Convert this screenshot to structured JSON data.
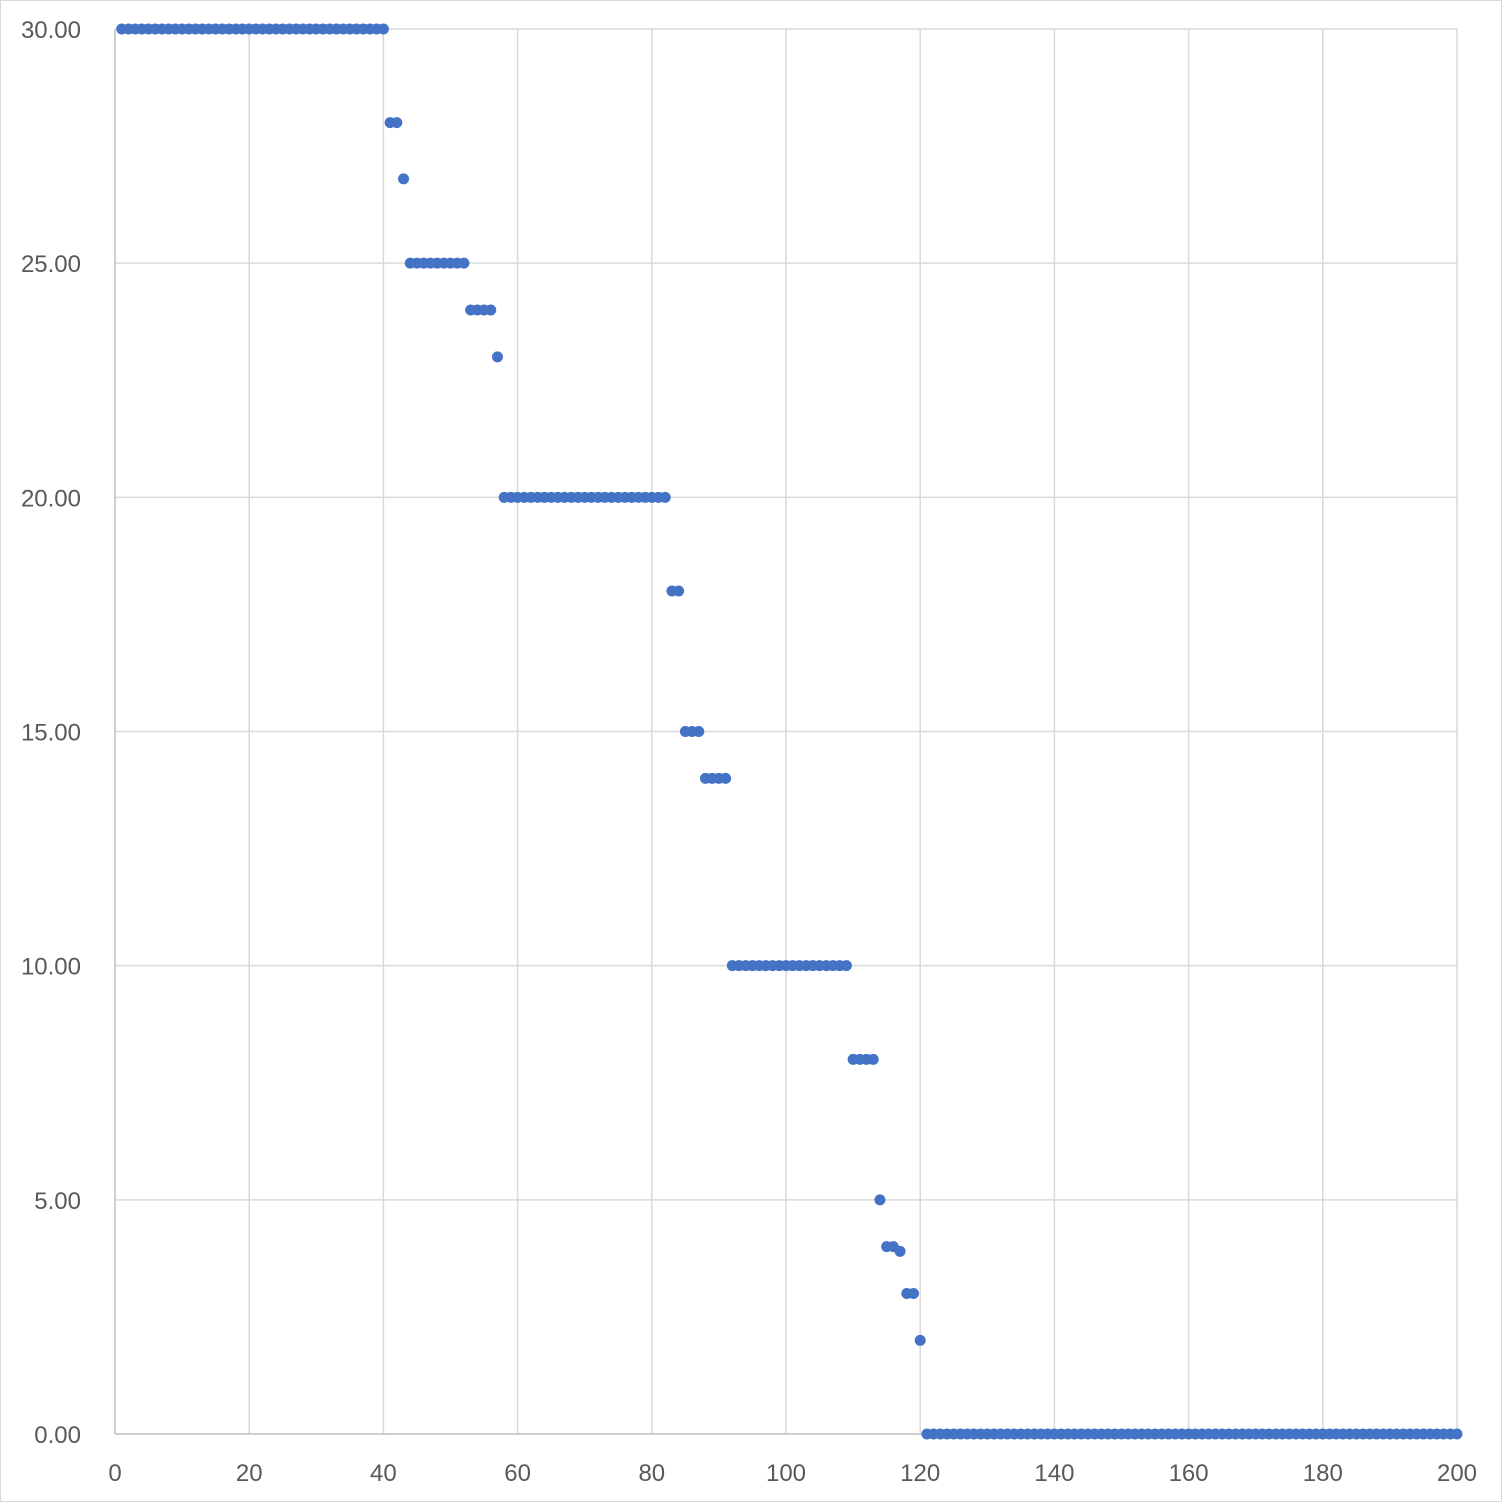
{
  "chart_data": {
    "type": "scatter",
    "title": "",
    "xlabel": "",
    "ylabel": "",
    "xlim": [
      0,
      200
    ],
    "ylim": [
      0,
      30
    ],
    "grid": true,
    "legend": "none",
    "x_ticks": [
      "0",
      "20",
      "40",
      "60",
      "80",
      "100",
      "120",
      "140",
      "160",
      "180",
      "200"
    ],
    "y_ticks": [
      "0.00",
      "5.00",
      "10.00",
      "15.00",
      "20.00",
      "25.00",
      "30.00"
    ],
    "series": [
      {
        "color": "#4472c4",
        "marker": "circle",
        "segments": [
          {
            "x_from": 1,
            "x_to": 40,
            "y": 30
          },
          {
            "x_from": 41,
            "x_to": 42,
            "y": 28
          },
          {
            "x_from": 43,
            "x_to": 43,
            "y": 26.8
          },
          {
            "x_from": 44,
            "x_to": 52,
            "y": 25
          },
          {
            "x_from": 53,
            "x_to": 56,
            "y": 24
          },
          {
            "x_from": 57,
            "x_to": 57,
            "y": 23
          },
          {
            "x_from": 58,
            "x_to": 82,
            "y": 20
          },
          {
            "x_from": 83,
            "x_to": 84,
            "y": 18
          },
          {
            "x_from": 85,
            "x_to": 87,
            "y": 15
          },
          {
            "x_from": 88,
            "x_to": 91,
            "y": 14
          },
          {
            "x_from": 92,
            "x_to": 109,
            "y": 10
          },
          {
            "x_from": 110,
            "x_to": 113,
            "y": 8
          },
          {
            "x_from": 114,
            "x_to": 114,
            "y": 5
          },
          {
            "x_from": 115,
            "x_to": 116,
            "y": 4
          },
          {
            "x_from": 117,
            "x_to": 117,
            "y": 3.9
          },
          {
            "x_from": 118,
            "x_to": 119,
            "y": 3
          },
          {
            "x_from": 120,
            "x_to": 120,
            "y": 2
          },
          {
            "x_from": 121,
            "x_to": 200,
            "y": 0
          }
        ]
      }
    ]
  }
}
